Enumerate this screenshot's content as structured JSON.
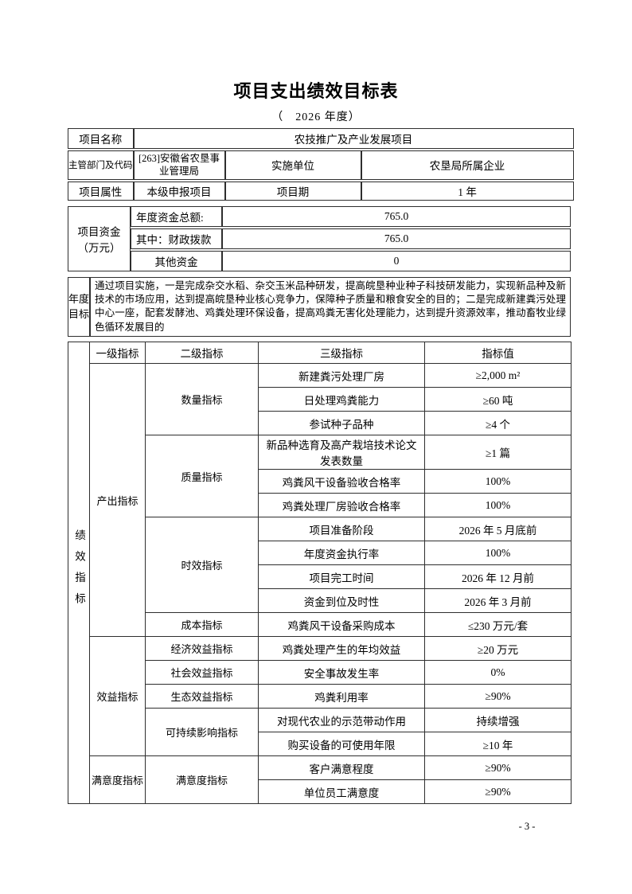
{
  "page": {
    "title": "项目支出绩效目标表",
    "subtitle": "（　2026 年度）",
    "page_number": "- 3 -"
  },
  "info": {
    "project_name_label": "项目名称",
    "project_name": "农技推广及产业发展项目",
    "dept_label": "主管部门及代码",
    "dept": "[263]安徽省农垦事业管理局",
    "impl_unit_label": "实施单位",
    "impl_unit": "农垦局所属企业",
    "attr_label": "项目属性",
    "attr": "本级申报项目",
    "period_label": "项目期",
    "period": "1 年"
  },
  "funds": {
    "label": "项目资金\n（万元）",
    "rows": [
      {
        "name": "年度资金总额:",
        "value": "765.0"
      },
      {
        "name": "其中：财政拨款",
        "value": "765.0"
      },
      {
        "name": "其他资金",
        "value": "0"
      }
    ]
  },
  "annual_goal": {
    "label": "年度\n目标",
    "text": "通过项目实施，一是完成杂交水稻、杂交玉米品种研发，提高皖垦种业种子科技研发能力，实现新品种及新技术的市场应用，达到提高皖垦种业核心竞争力，保障种子质量和粮食安全的目的；二是完成新建粪污处理中心一座，配套发酵池、鸡粪处理环保设备，提高鸡粪无害化处理能力，达到提升资源效率，推动畜牧业绿色循环发展目的"
  },
  "indicators": {
    "side_label": "绩效指标",
    "headers": [
      "一级指标",
      "二级指标",
      "三级指标",
      "指标值"
    ],
    "groups": [
      {
        "level1": "产出指标",
        "level2_groups": [
          {
            "level2": "数量指标",
            "rows": [
              {
                "name": "新建粪污处理厂房",
                "value": "≥2,000 m²"
              },
              {
                "name": "日处理鸡粪能力",
                "value": "≥60 吨"
              },
              {
                "name": "参试种子品种",
                "value": "≥4 个"
              }
            ]
          },
          {
            "level2": "质量指标",
            "rows": [
              {
                "name": "新品种选育及高产栽培技术论文发表数量",
                "value": "≥1 篇",
                "tall": true
              },
              {
                "name": "鸡粪风干设备验收合格率",
                "value": "100%"
              },
              {
                "name": "鸡粪处理厂房验收合格率",
                "value": "100%"
              }
            ]
          },
          {
            "level2": "时效指标",
            "rows": [
              {
                "name": "项目准备阶段",
                "value": "2026 年 5 月底前"
              },
              {
                "name": "年度资金执行率",
                "value": "100%"
              },
              {
                "name": "项目完工时间",
                "value": "2026 年 12 月前"
              },
              {
                "name": "资金到位及时性",
                "value": "2026 年 3 月前"
              }
            ]
          },
          {
            "level2": "成本指标",
            "rows": [
              {
                "name": "鸡粪风干设备采购成本",
                "value": "≤230 万元/套"
              }
            ]
          }
        ]
      },
      {
        "level1": "效益指标",
        "level2_groups": [
          {
            "level2": "经济效益指标",
            "rows": [
              {
                "name": "鸡粪处理产生的年均效益",
                "value": "≥20 万元"
              }
            ]
          },
          {
            "level2": "社会效益指标",
            "rows": [
              {
                "name": "安全事故发生率",
                "value": "0%"
              }
            ]
          },
          {
            "level2": "生态效益指标",
            "rows": [
              {
                "name": "鸡粪利用率",
                "value": "≥90%"
              }
            ]
          },
          {
            "level2": "可持续影响指标",
            "rows": [
              {
                "name": "对现代农业的示范带动作用",
                "value": "持续增强"
              },
              {
                "name": "购买设备的可使用年限",
                "value": "≥10 年"
              }
            ]
          }
        ]
      },
      {
        "level1": "满意度指标",
        "level2_groups": [
          {
            "level2": "满意度指标",
            "rows": [
              {
                "name": "客户满意程度",
                "value": "≥90%"
              },
              {
                "name": "单位员工满意度",
                "value": "≥90%"
              }
            ]
          }
        ]
      }
    ]
  }
}
